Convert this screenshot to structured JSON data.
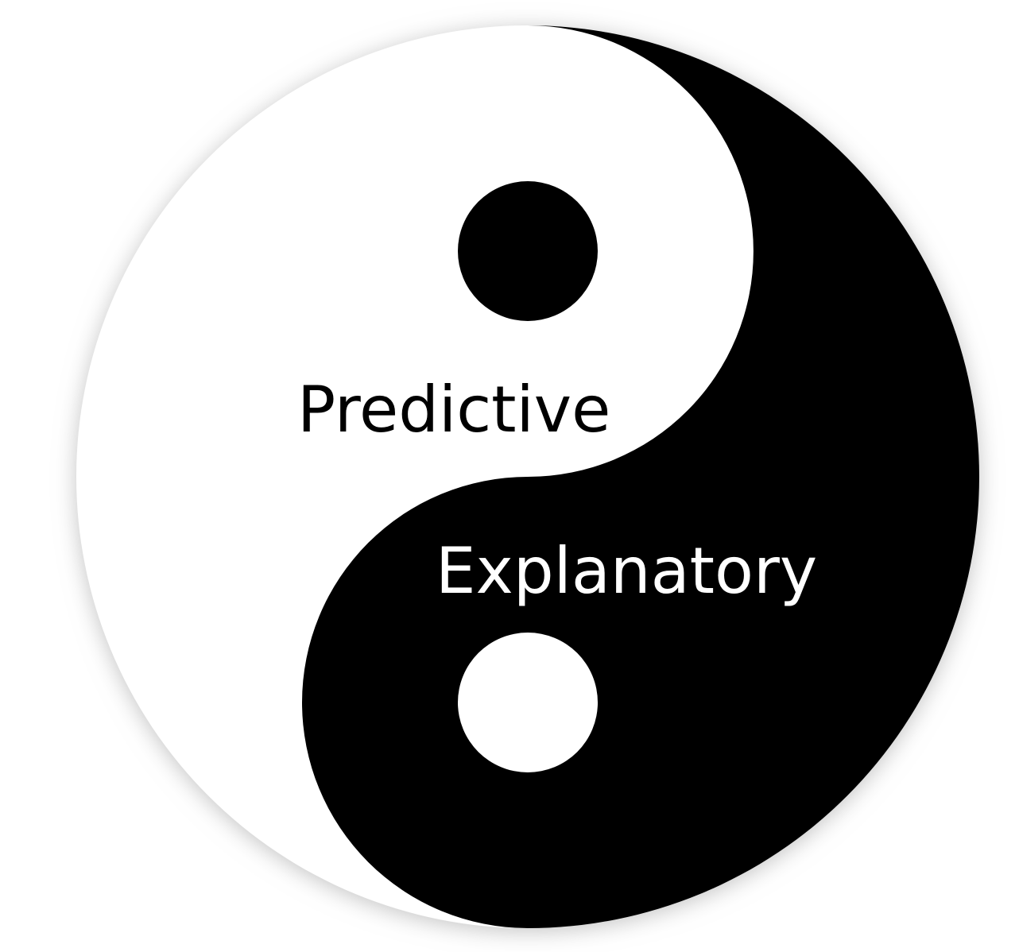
{
  "labels": {
    "predictive": "Predictive",
    "explanatory": "Explanatory"
  },
  "colors": {
    "light": "#ffffff",
    "dark": "#000000",
    "shadow": "#bdbdbd"
  }
}
